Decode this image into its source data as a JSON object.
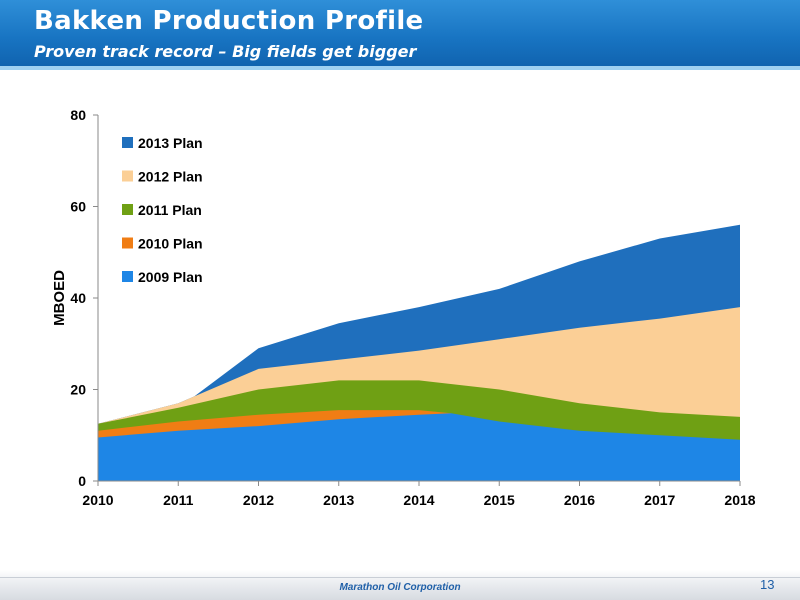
{
  "header": {
    "title": "Bakken Production Profile",
    "subtitle": "Proven track record – Big fields get bigger"
  },
  "footer": {
    "company": "Marathon Oil Corporation",
    "page_number": "13"
  },
  "chart_data": {
    "type": "area",
    "title": "",
    "xlabel": "",
    "ylabel": "MBOED",
    "xlim": [
      2010,
      2018
    ],
    "ylim": [
      0,
      80
    ],
    "yticks": [
      0,
      20,
      40,
      60,
      80
    ],
    "x": [
      2010,
      2011,
      2012,
      2013,
      2014,
      2015,
      2016,
      2017,
      2018
    ],
    "grid": false,
    "legend_position": "top-left",
    "series": [
      {
        "name": "2013 Plan",
        "color": "#1f6fbd",
        "x": [
          2010,
          2011,
          2011.2,
          2012,
          2013,
          2014,
          2015,
          2016,
          2017,
          2018
        ],
        "y": [
          12.5,
          17,
          18.5,
          29,
          34.5,
          38,
          42,
          48,
          53,
          56
        ]
      },
      {
        "name": "2012 Plan",
        "color": "#fbcf96",
        "x": [
          2010,
          2011,
          2012,
          2013,
          2014,
          2015,
          2016,
          2017,
          2018
        ],
        "y": [
          12.5,
          17,
          24.5,
          26.5,
          28.5,
          31,
          33.5,
          35.5,
          38
        ]
      },
      {
        "name": "2011 Plan",
        "color": "#6fa014",
        "x": [
          2010,
          2011,
          2012,
          2013,
          2014,
          2015,
          2016,
          2017,
          2018
        ],
        "y": [
          12.5,
          16,
          20,
          22,
          22,
          20,
          17,
          15,
          14
        ]
      },
      {
        "name": "2010 Plan",
        "color": "#f07d14",
        "x": [
          2010,
          2011,
          2012,
          2013,
          2014,
          2014.4
        ],
        "y": [
          11,
          13,
          14.5,
          15.5,
          15.5,
          14.8
        ]
      },
      {
        "name": "2009 Plan",
        "color": "#1e86e6",
        "x": [
          2010,
          2011,
          2012,
          2013,
          2014,
          2014.4,
          2015,
          2016,
          2017,
          2018
        ],
        "y": [
          9.5,
          11,
          12,
          13.5,
          14.5,
          14.8,
          13,
          11,
          10,
          9
        ]
      }
    ]
  }
}
